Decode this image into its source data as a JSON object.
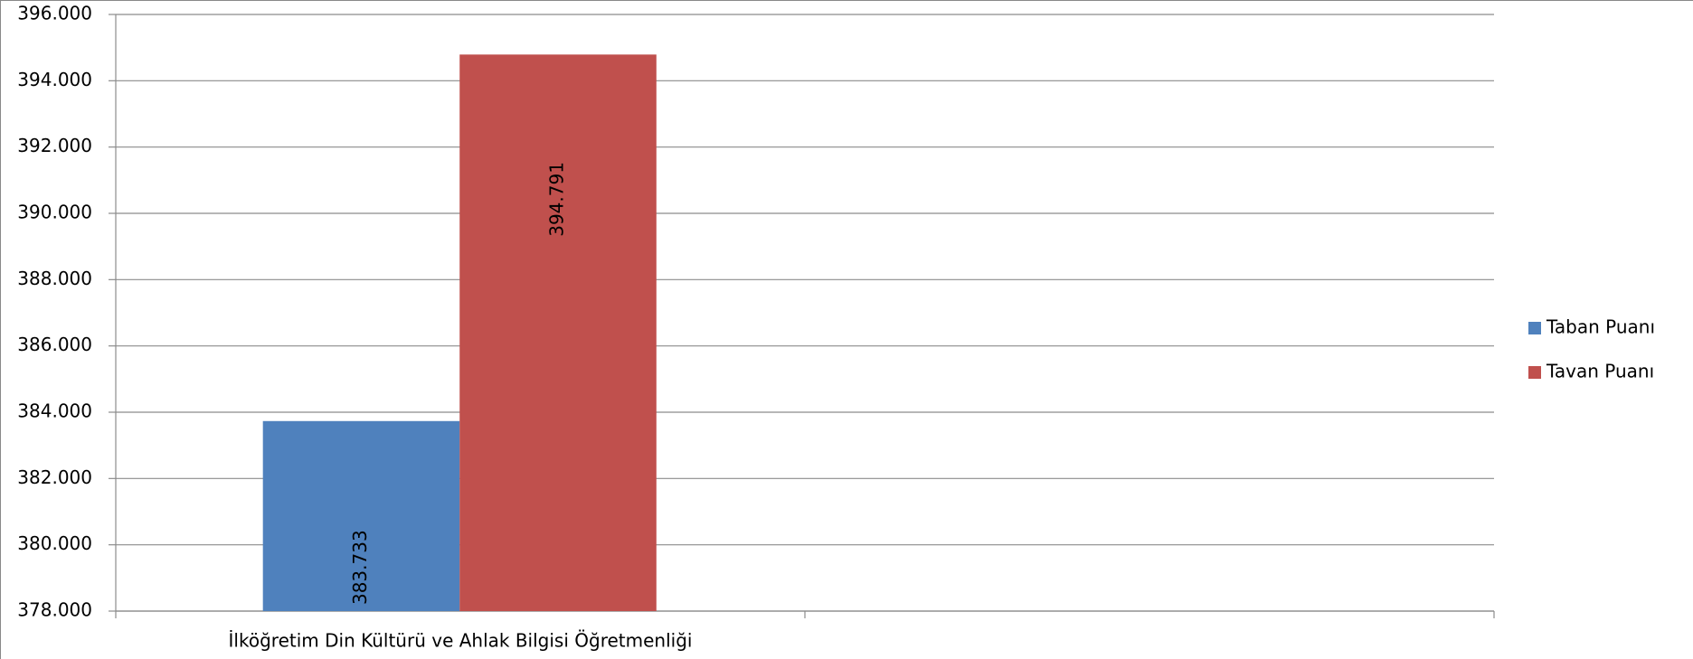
{
  "chart_data": {
    "type": "bar",
    "categories": [
      "İlköğretim Din Kültürü ve Ahlak Bilgisi Öğretmenliği",
      null
    ],
    "series": [
      {
        "name": "Taban Puanı",
        "color": "#4f81bd",
        "values": [
          383.733,
          null
        ]
      },
      {
        "name": "Tavan Puanı",
        "color": "#c0504d",
        "values": [
          394.791,
          null
        ]
      }
    ],
    "ylim": [
      378,
      396
    ],
    "yticks": [
      {
        "value": 378,
        "label": "378.000"
      },
      {
        "value": 380,
        "label": "380.000"
      },
      {
        "value": 382,
        "label": "382.000"
      },
      {
        "value": 384,
        "label": "384.000"
      },
      {
        "value": 386,
        "label": "386.000"
      },
      {
        "value": 388,
        "label": "388.000"
      },
      {
        "value": 390,
        "label": "390.000"
      },
      {
        "value": 392,
        "label": "392.000"
      },
      {
        "value": 394,
        "label": "394.000"
      },
      {
        "value": 396,
        "label": "396.000"
      }
    ],
    "grid": true,
    "legend": "right"
  }
}
